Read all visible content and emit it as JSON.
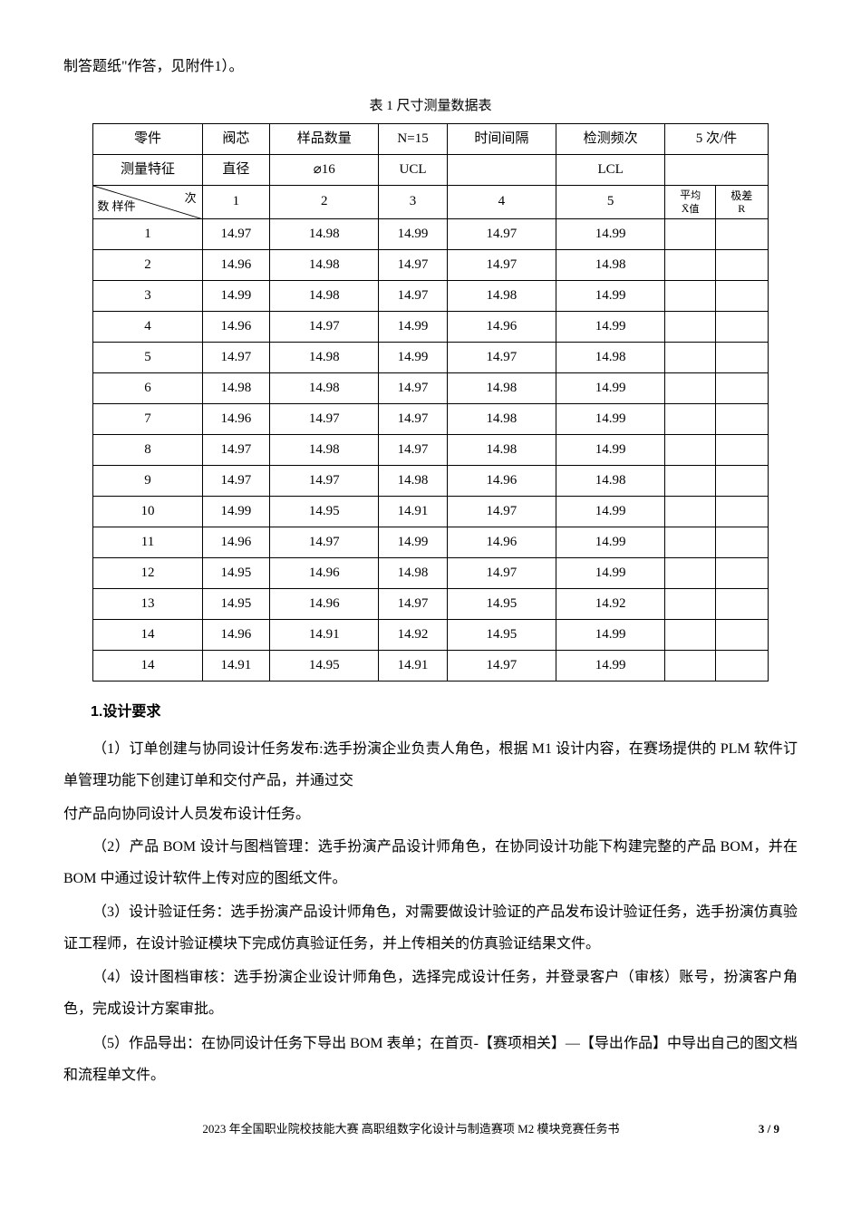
{
  "top_line": "制答题纸\"作答，见附件1）。",
  "table_title": "表 1 尺寸测量数据表",
  "table": {
    "header_row1": {
      "c1": "零件",
      "c2": "阀芯",
      "c3": "样品数量",
      "c4": "N=15",
      "c5": "时间间隔",
      "c6": "检测频次",
      "c7": "5 次/件"
    },
    "header_row2": {
      "c1": "测量特征",
      "c2": "直径",
      "c3": "⌀16",
      "c4": "UCL",
      "c5": "",
      "c6": "LCL",
      "c7": ""
    },
    "header_row3": {
      "diag_top": "次",
      "diag_bottom": "数 样件",
      "c2": "1",
      "c3": "2",
      "c4": "3",
      "c5": "4",
      "c6": "5",
      "avg_label": "平均\nX̄值",
      "range_label": "极差\nR"
    },
    "rows": [
      {
        "n": "1",
        "v": [
          "14.97",
          "14.98",
          "14.99",
          "14.97",
          "14.99"
        ]
      },
      {
        "n": "2",
        "v": [
          "14.96",
          "14.98",
          "14.97",
          "14.97",
          "14.98"
        ]
      },
      {
        "n": "3",
        "v": [
          "14.99",
          "14.98",
          "14.97",
          "14.98",
          "14.99"
        ]
      },
      {
        "n": "4",
        "v": [
          "14.96",
          "14.97",
          "14.99",
          "14.96",
          "14.99"
        ]
      },
      {
        "n": "5",
        "v": [
          "14.97",
          "14.98",
          "14.99",
          "14.97",
          "14.98"
        ]
      },
      {
        "n": "6",
        "v": [
          "14.98",
          "14.98",
          "14.97",
          "14.98",
          "14.99"
        ]
      },
      {
        "n": "7",
        "v": [
          "14.96",
          "14.97",
          "14.97",
          "14.98",
          "14.99"
        ]
      },
      {
        "n": "8",
        "v": [
          "14.97",
          "14.98",
          "14.97",
          "14.98",
          "14.99"
        ]
      },
      {
        "n": "9",
        "v": [
          "14.97",
          "14.97",
          "14.98",
          "14.96",
          "14.98"
        ]
      },
      {
        "n": "10",
        "v": [
          "14.99",
          "14.95",
          "14.91",
          "14.97",
          "14.99"
        ]
      },
      {
        "n": "11",
        "v": [
          "14.96",
          "14.97",
          "14.99",
          "14.96",
          "14.99"
        ]
      },
      {
        "n": "12",
        "v": [
          "14.95",
          "14.96",
          "14.98",
          "14.97",
          "14.99"
        ]
      },
      {
        "n": "13",
        "v": [
          "14.95",
          "14.96",
          "14.97",
          "14.95",
          "14.92"
        ]
      },
      {
        "n": "14",
        "v": [
          "14.96",
          "14.91",
          "14.92",
          "14.95",
          "14.99"
        ]
      },
      {
        "n": "14",
        "v": [
          "14.91",
          "14.95",
          "14.91",
          "14.97",
          "14.99"
        ]
      }
    ]
  },
  "section_heading": "1.设计要求",
  "paragraphs": {
    "p1": "（1）订单创建与协同设计任务发布:选手扮演企业负责人角色，根据 M1 设计内容，在赛场提供的 PLM 软件订单管理功能下创建订单和交付产品，并通过交",
    "p1b": "付产品向协同设计人员发布设计任务。",
    "p2": "（2）产品 BOM 设计与图档管理：选手扮演产品设计师角色，在协同设计功能下构建完整的产品 BOM，并在 BOM 中通过设计软件上传对应的图纸文件。",
    "p3": "（3）设计验证任务：选手扮演产品设计师角色，对需要做设计验证的产品发布设计验证任务，选手扮演仿真验证工程师，在设计验证模块下完成仿真验证任务，并上传相关的仿真验证结果文件。",
    "p4": "（4）设计图档审核：选手扮演企业设计师角色，选择完成设计任务，并登录客户（审核）账号，扮演客户角色，完成设计方案审批。",
    "p5": "（5）作品导出：在协同设计任务下导出 BOM 表单；在首页-【赛项相关】—【导出作品】中导出自己的图文档和流程单文件。"
  },
  "footer": {
    "text": "2023 年全国职业院校技能大赛 高职组数字化设计与制造赛项 M2 模块竞赛任务书",
    "page": "3 / 9"
  }
}
